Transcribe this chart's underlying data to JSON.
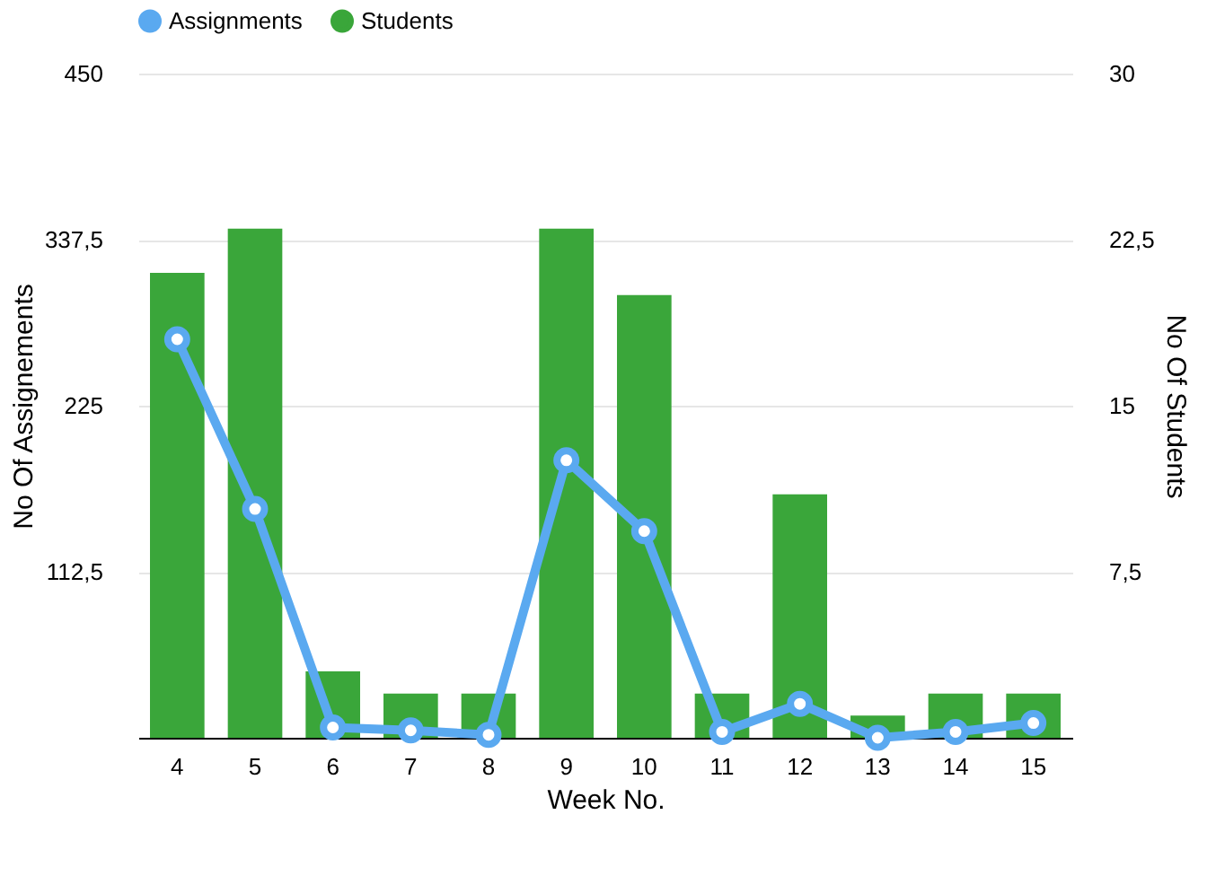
{
  "chart_data": {
    "type": "bar",
    "xlabel": "Week No.",
    "ylabel": "No Of Assignements",
    "y2label": "No Of Students",
    "categories": [
      "4",
      "5",
      "6",
      "7",
      "8",
      "9",
      "10",
      "11",
      "12",
      "13",
      "14",
      "15"
    ],
    "ylim": [
      0,
      450
    ],
    "yticks": [
      {
        "value": 0,
        "label": null
      },
      {
        "value": 112.5,
        "label": "112,5"
      },
      225,
      {
        "value": 337.5,
        "label": "337,5"
      },
      450
    ],
    "y2lim": [
      0,
      30
    ],
    "y2ticks": [
      {
        "value": 0,
        "label": null
      },
      {
        "value": 7.5,
        "label": "7,5"
      },
      15,
      {
        "value": 22.5,
        "label": "22,5"
      },
      30
    ],
    "series": [
      {
        "name": "Assignments",
        "type": "line",
        "axis": "y",
        "color": "#5aa9f0",
        "values": [
          270,
          155,
          7,
          5,
          2,
          188,
          140,
          4,
          23,
          0,
          4,
          10
        ]
      },
      {
        "name": "Students",
        "axis": "y2",
        "color": "#3aa63a",
        "values": [
          21,
          23,
          3,
          2,
          2,
          23,
          20,
          2,
          11,
          1,
          2,
          2
        ]
      }
    ],
    "grid": "y",
    "legend": "top",
    "marker": "circle",
    "line_style": "solid"
  }
}
